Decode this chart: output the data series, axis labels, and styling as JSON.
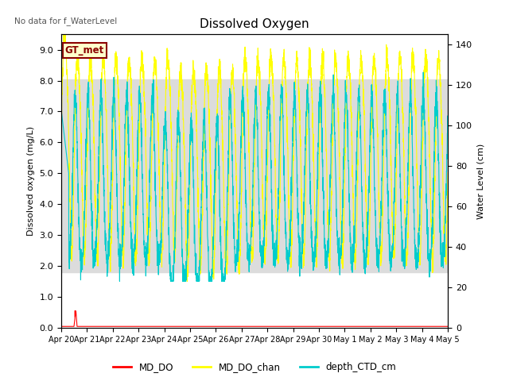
{
  "title": "Dissolved Oxygen",
  "top_left_text": "No data for f_WaterLevel",
  "ylabel_left": "Dissolved oxygen (mg/L)",
  "ylabel_right": "Water Level (cm)",
  "ylim_left": [
    0.0,
    9.5
  ],
  "ylim_right": [
    0,
    145
  ],
  "yticks_left": [
    0.0,
    1.0,
    2.0,
    3.0,
    4.0,
    5.0,
    6.0,
    7.0,
    8.0,
    9.0
  ],
  "yticks_right": [
    0,
    20,
    40,
    60,
    80,
    100,
    120,
    140
  ],
  "xtick_labels": [
    "Apr 20",
    "Apr 21",
    "Apr 22",
    "Apr 23",
    "Apr 24",
    "Apr 25",
    "Apr 26",
    "Apr 27",
    "Apr 28",
    "Apr 29",
    "Apr 30",
    "May 1",
    "May 2",
    "May 3",
    "May 4",
    "May 5"
  ],
  "color_MD_DO": "#FF0000",
  "color_MD_DO_chan": "#FFFF00",
  "color_depth_CTD_cm": "#00CCCC",
  "legend_labels": [
    "MD_DO",
    "MD_DO_chan",
    "depth_CTD_cm"
  ],
  "annotation_box_text": "GT_met",
  "annotation_box_facecolor": "#FFFFCC",
  "annotation_box_edgecolor": "#8B0000",
  "annotation_box_textcolor": "#8B0000",
  "background_shading_color": "#DCDCDC",
  "background_shading_low": 1.8,
  "background_shading_high": 8.05
}
